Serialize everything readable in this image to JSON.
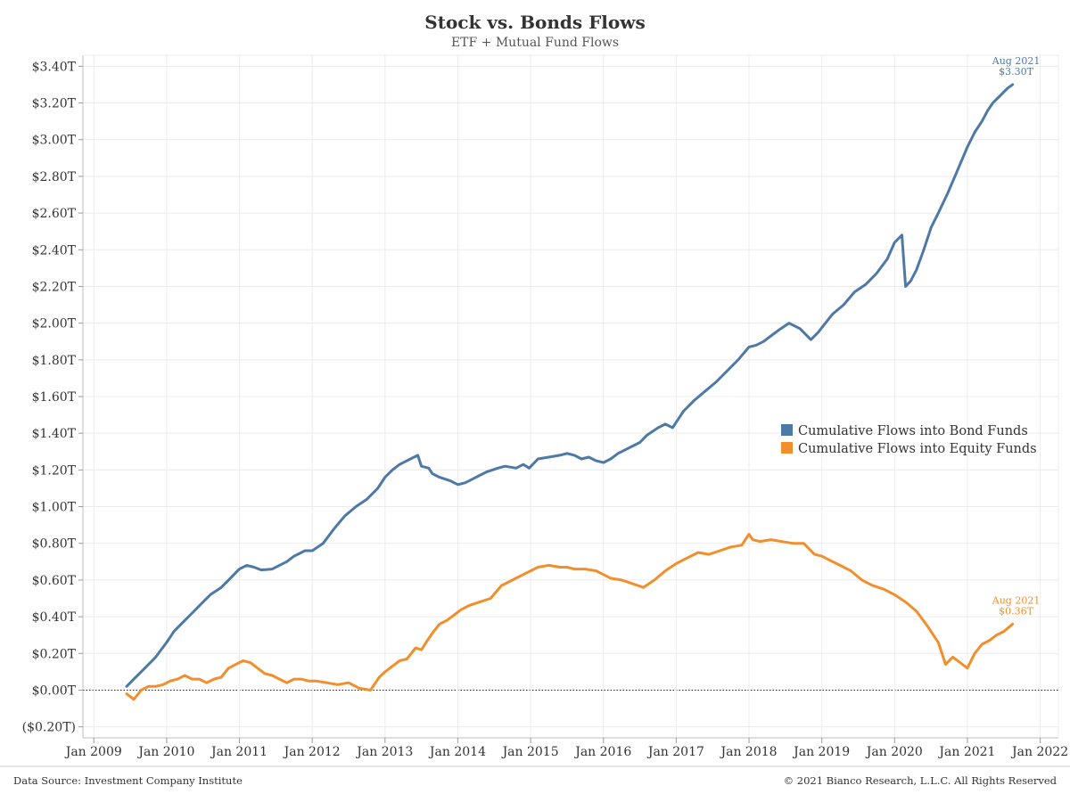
{
  "chart_data": {
    "type": "line",
    "title": "Stock vs. Bonds Flows",
    "subtitle": "ETF + Mutual Fund Flows",
    "y_ticks": [
      "$3.40T",
      "$3.20T",
      "$3.00T",
      "$2.80T",
      "$2.60T",
      "$2.40T",
      "$2.20T",
      "$2.00T",
      "$1.80T",
      "$1.60T",
      "$1.40T",
      "$1.20T",
      "$1.00T",
      "$0.80T",
      "$0.60T",
      "$0.40T",
      "$0.20T",
      "$0.00T",
      "($0.20T)"
    ],
    "y_tick_values": [
      3.4,
      3.2,
      3.0,
      2.8,
      2.6,
      2.4,
      2.2,
      2.0,
      1.8,
      1.6,
      1.4,
      1.2,
      1.0,
      0.8,
      0.6,
      0.4,
      0.2,
      0.0,
      -0.2
    ],
    "x_ticks": [
      "Jan 2009",
      "Jan 2010",
      "Jan 2011",
      "Jan 2012",
      "Jan 2013",
      "Jan 2014",
      "Jan 2015",
      "Jan 2016",
      "Jan 2017",
      "Jan 2018",
      "Jan 2019",
      "Jan 2020",
      "Jan 2021",
      "Jan 2022"
    ],
    "x_tick_values": [
      2009,
      2010,
      2011,
      2012,
      2013,
      2014,
      2015,
      2016,
      2017,
      2018,
      2019,
      2020,
      2021,
      2022
    ],
    "xlim": [
      2008.85,
      2022.25
    ],
    "ylim": [
      -0.26,
      3.46
    ],
    "grid": true,
    "legend_position": "center-right",
    "series": [
      {
        "name": "Cumulative Flows into Bond Funds",
        "color": "#4e79a7",
        "end_label": [
          "Aug 2021",
          "$3.30T"
        ],
        "x": [
          2009.45,
          2009.55,
          2009.7,
          2009.85,
          2010.0,
          2010.1,
          2010.25,
          2010.35,
          2010.5,
          2010.6,
          2010.75,
          2010.85,
          2010.95,
          2011.0,
          2011.1,
          2011.2,
          2011.3,
          2011.45,
          2011.55,
          2011.65,
          2011.75,
          2011.9,
          2012.0,
          2012.15,
          2012.3,
          2012.45,
          2012.6,
          2012.75,
          2012.9,
          2013.0,
          2013.1,
          2013.2,
          2013.35,
          2013.45,
          2013.5,
          2013.6,
          2013.65,
          2013.75,
          2013.9,
          2014.0,
          2014.1,
          2014.2,
          2014.3,
          2014.4,
          2014.55,
          2014.65,
          2014.8,
          2014.9,
          2014.98,
          2015.1,
          2015.25,
          2015.4,
          2015.5,
          2015.6,
          2015.7,
          2015.8,
          2015.9,
          2016.0,
          2016.1,
          2016.2,
          2016.35,
          2016.5,
          2016.6,
          2016.75,
          2016.85,
          2016.95,
          2017.1,
          2017.25,
          2017.4,
          2017.55,
          2017.7,
          2017.85,
          2018.0,
          2018.1,
          2018.2,
          2018.3,
          2018.4,
          2018.55,
          2018.7,
          2018.85,
          2018.95,
          2019.05,
          2019.15,
          2019.3,
          2019.45,
          2019.6,
          2019.75,
          2019.9,
          2020.0,
          2020.1,
          2020.15,
          2020.22,
          2020.3,
          2020.4,
          2020.5,
          2020.6,
          2020.72,
          2020.85,
          2021.0,
          2021.1,
          2021.2,
          2021.28,
          2021.35,
          2021.45,
          2021.55,
          2021.62
        ],
        "y": [
          0.02,
          0.06,
          0.12,
          0.18,
          0.26,
          0.32,
          0.38,
          0.42,
          0.48,
          0.52,
          0.56,
          0.6,
          0.64,
          0.66,
          0.68,
          0.67,
          0.655,
          0.66,
          0.68,
          0.7,
          0.73,
          0.76,
          0.76,
          0.8,
          0.88,
          0.95,
          1.0,
          1.04,
          1.1,
          1.16,
          1.2,
          1.23,
          1.26,
          1.28,
          1.22,
          1.21,
          1.18,
          1.16,
          1.14,
          1.12,
          1.13,
          1.15,
          1.17,
          1.19,
          1.21,
          1.22,
          1.21,
          1.23,
          1.21,
          1.26,
          1.27,
          1.28,
          1.29,
          1.28,
          1.26,
          1.27,
          1.25,
          1.24,
          1.26,
          1.29,
          1.32,
          1.35,
          1.39,
          1.43,
          1.45,
          1.43,
          1.52,
          1.58,
          1.63,
          1.68,
          1.74,
          1.8,
          1.87,
          1.88,
          1.9,
          1.93,
          1.96,
          2.0,
          1.97,
          1.91,
          1.95,
          2.0,
          2.05,
          2.1,
          2.17,
          2.21,
          2.27,
          2.35,
          2.44,
          2.48,
          2.2,
          2.23,
          2.29,
          2.4,
          2.52,
          2.6,
          2.7,
          2.82,
          2.96,
          3.04,
          3.1,
          3.16,
          3.2,
          3.24,
          3.28,
          3.3
        ]
      },
      {
        "name": "Cumulative Flows into Equity Funds",
        "color": "#f28e2b",
        "end_label": [
          "Aug 2021",
          "$0.36T"
        ],
        "x": [
          2009.45,
          2009.55,
          2009.65,
          2009.75,
          2009.85,
          2009.95,
          2010.05,
          2010.15,
          2010.25,
          2010.35,
          2010.45,
          2010.55,
          2010.65,
          2010.75,
          2010.85,
          2010.95,
          2011.05,
          2011.15,
          2011.25,
          2011.35,
          2011.45,
          2011.55,
          2011.65,
          2011.75,
          2011.85,
          2011.95,
          2012.05,
          2012.2,
          2012.35,
          2012.5,
          2012.65,
          2012.8,
          2012.92,
          2013.0,
          2013.1,
          2013.2,
          2013.3,
          2013.42,
          2013.5,
          2013.58,
          2013.65,
          2013.75,
          2013.85,
          2013.95,
          2014.05,
          2014.15,
          2014.3,
          2014.45,
          2014.6,
          2014.75,
          2014.9,
          2015.0,
          2015.1,
          2015.25,
          2015.4,
          2015.5,
          2015.6,
          2015.75,
          2015.9,
          2016.0,
          2016.1,
          2016.25,
          2016.4,
          2016.55,
          2016.7,
          2016.85,
          2017.0,
          2017.15,
          2017.3,
          2017.45,
          2017.6,
          2017.75,
          2017.9,
          2018.0,
          2018.05,
          2018.15,
          2018.3,
          2018.45,
          2018.6,
          2018.75,
          2018.9,
          2019.0,
          2019.1,
          2019.25,
          2019.4,
          2019.55,
          2019.7,
          2019.85,
          2020.0,
          2020.15,
          2020.3,
          2020.45,
          2020.6,
          2020.7,
          2020.8,
          2020.9,
          2021.0,
          2021.1,
          2021.2,
          2021.3,
          2021.4,
          2021.5,
          2021.62
        ],
        "y": [
          -0.02,
          -0.05,
          0.0,
          0.02,
          0.02,
          0.03,
          0.05,
          0.06,
          0.08,
          0.06,
          0.06,
          0.04,
          0.06,
          0.07,
          0.12,
          0.14,
          0.16,
          0.15,
          0.12,
          0.09,
          0.08,
          0.06,
          0.04,
          0.06,
          0.06,
          0.05,
          0.05,
          0.04,
          0.03,
          0.04,
          0.01,
          0.0,
          0.07,
          0.1,
          0.13,
          0.16,
          0.17,
          0.23,
          0.22,
          0.27,
          0.31,
          0.36,
          0.38,
          0.41,
          0.44,
          0.46,
          0.48,
          0.5,
          0.57,
          0.6,
          0.63,
          0.65,
          0.67,
          0.68,
          0.67,
          0.67,
          0.66,
          0.66,
          0.65,
          0.63,
          0.61,
          0.6,
          0.58,
          0.56,
          0.6,
          0.65,
          0.69,
          0.72,
          0.75,
          0.74,
          0.76,
          0.78,
          0.79,
          0.85,
          0.82,
          0.81,
          0.82,
          0.81,
          0.8,
          0.8,
          0.74,
          0.73,
          0.71,
          0.68,
          0.65,
          0.6,
          0.57,
          0.55,
          0.52,
          0.48,
          0.43,
          0.35,
          0.26,
          0.14,
          0.18,
          0.15,
          0.12,
          0.2,
          0.25,
          0.27,
          0.3,
          0.32,
          0.36
        ]
      }
    ]
  },
  "footer": {
    "source": "Data Source: Investment Company Institute",
    "copyright": "© 2021 Bianco Research, L.L.C. All Rights Reserved"
  }
}
